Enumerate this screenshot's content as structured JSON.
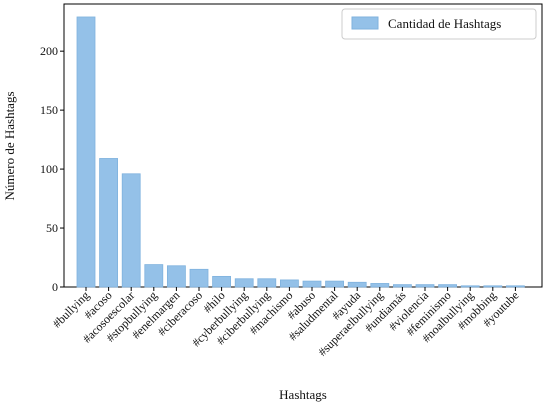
{
  "chart_data": {
    "type": "bar",
    "categories": [
      "#bullying",
      "#acoso",
      "#acosoescolar",
      "#stopbullying",
      "#enelmargen",
      "#ciberacoso",
      "#hilo",
      "#cyberbullying",
      "#ciberbullying",
      "#machismo",
      "#abuso",
      "#saludmental",
      "#ayuda",
      "#superaelbullying",
      "#undiamás",
      "#violencia",
      "#feminismo",
      "#noalbullying",
      "#mobbing",
      "#youtube"
    ],
    "series": [
      {
        "name": "Cantidad de Hashtags",
        "values": [
          229,
          109,
          96,
          19,
          18,
          15,
          9,
          7,
          7,
          6,
          5,
          5,
          4,
          3,
          2,
          2,
          2,
          1,
          1,
          1
        ]
      }
    ],
    "xlabel": "Hashtags",
    "ylabel": "Número de Hashtags",
    "ylim": [
      0,
      240
    ],
    "yticks": [
      0,
      50,
      100,
      150,
      200
    ],
    "grid": false,
    "legend_position": "top-right",
    "colors": {
      "bar": "#94c1e8",
      "bar_edge": "#7fb2de",
      "axis": "#000000",
      "text": "#111111"
    }
  }
}
